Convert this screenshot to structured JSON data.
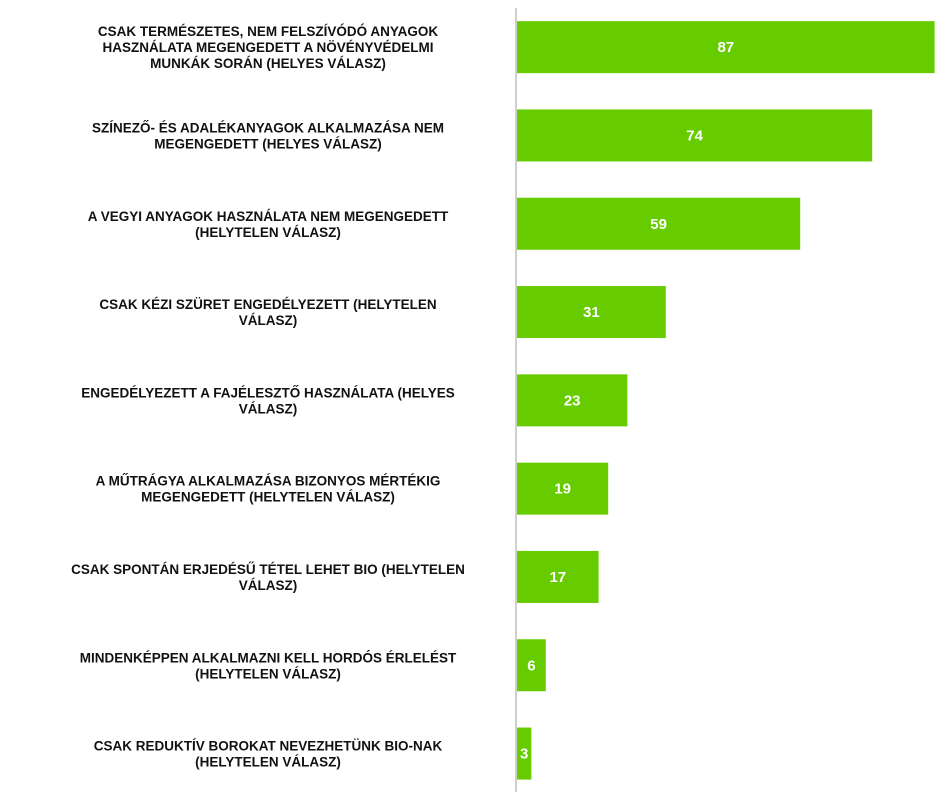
{
  "chart_data": {
    "type": "bar",
    "orientation": "horizontal",
    "categories": [
      "CSAK TERMÉSZETES, NEM FELSZÍVÓDÓ ANYAGOK HASZNÁLATA MEGENGEDETT A NÖVÉNYVÉDELMI MUNKÁK SORÁN (HELYES VÁLASZ)",
      "SZÍNEZŐ- ÉS ADALÉKANYAGOK ALKALMAZÁSA NEM MEGENGEDETT (HELYES VÁLASZ)",
      "A VEGYI ANYAGOK HASZNÁLATA NEM MEGENGEDETT (HELYTELEN VÁLASZ)",
      "CSAK KÉZI SZÜRET ENGEDÉLYEZETT (HELYTELEN VÁLASZ)",
      "ENGEDÉLYEZETT A FAJÉLESZTŐ HASZNÁLATA (HELYES VÁLASZ)",
      "A MŰTRÁGYA ALKALMAZÁSA BIZONYOS MÉRTÉKIG MEGENGEDETT (HELYTELEN VÁLASZ)",
      "CSAK SPONTÁN ERJEDÉSŰ TÉTEL LEHET BIO (HELYTELEN VÁLASZ)",
      "MINDENKÉPPEN ALKALMAZNI KELL HORDÓS ÉRLELÉST (HELYTELEN VÁLASZ)",
      "CSAK REDUKTÍV BOROKAT NEVEZHETÜNK BIO-NAK (HELYTELEN VÁLASZ)"
    ],
    "category_lines": [
      [
        "CSAK TERMÉSZETES, NEM FELSZÍVÓDÓ ANYAGOK",
        "HASZNÁLATA MEGENGEDETT A NÖVÉNYVÉDELMI",
        "MUNKÁK SORÁN (HELYES VÁLASZ)"
      ],
      [
        "SZÍNEZŐ- ÉS ADALÉKANYAGOK ALKALMAZÁSA NEM",
        "MEGENGEDETT (HELYES VÁLASZ)"
      ],
      [
        "A VEGYI ANYAGOK HASZNÁLATA NEM MEGENGEDETT",
        "(HELYTELEN VÁLASZ)"
      ],
      [
        "CSAK KÉZI SZÜRET ENGEDÉLYEZETT (HELYTELEN",
        "VÁLASZ)"
      ],
      [
        "ENGEDÉLYEZETT A FAJÉLESZTŐ HASZNÁLATA (HELYES",
        "VÁLASZ)"
      ],
      [
        "A MŰTRÁGYA ALKALMAZÁSA BIZONYOS MÉRTÉKIG",
        "MEGENGEDETT (HELYTELEN VÁLASZ)"
      ],
      [
        "CSAK SPONTÁN ERJEDÉSŰ TÉTEL LEHET BIO (HELYTELEN",
        "VÁLASZ)"
      ],
      [
        "MINDENKÉPPEN ALKALMAZNI KELL HORDÓS ÉRLELÉST",
        "(HELYTELEN VÁLASZ)"
      ],
      [
        "CSAK REDUKTÍV BOROKAT NEVEZHETÜNK BIO-NAK",
        "(HELYTELEN VÁLASZ)"
      ]
    ],
    "values": [
      87,
      74,
      59,
      31,
      23,
      19,
      17,
      6,
      3
    ],
    "data_labels": [
      "87",
      "74",
      "59",
      "31",
      "23",
      "19",
      "17",
      "6",
      "3"
    ],
    "xlim": [
      0,
      100
    ],
    "grid": false,
    "legend": "none",
    "colors": {
      "bar": "#66cc00",
      "axis": "#bfbfbf",
      "category_text": "#111111",
      "value_text": "#ffffff"
    }
  }
}
